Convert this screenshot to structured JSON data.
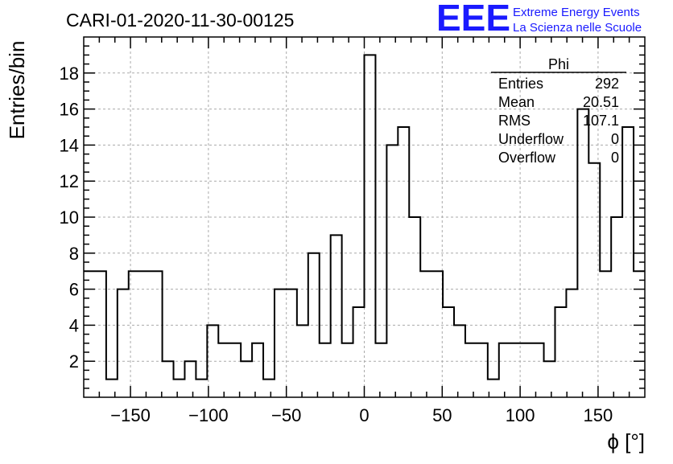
{
  "header": {
    "run_title": "CARI-01-2020-11-30-00125",
    "logo_text": "EEE",
    "logo_line1": "Extreme Energy Events",
    "logo_line2": "La Scienza nelle Scuole",
    "logo_color": "#1a1aff"
  },
  "stats_box": {
    "title": "Phi",
    "rows": [
      {
        "label": "Entries",
        "value": "292"
      },
      {
        "label": "Mean",
        "value": "20.51"
      },
      {
        "label": "RMS",
        "value": "107.1"
      },
      {
        "label": "Underflow",
        "value": "0"
      },
      {
        "label": "Overflow",
        "value": "0"
      }
    ]
  },
  "chart_data": {
    "type": "histogram",
    "title": "",
    "xlabel": "ϕ [°]",
    "ylabel": "Entries/bin",
    "xlim": [
      -180,
      180
    ],
    "ylim": [
      0,
      20
    ],
    "bin_width": 7.2,
    "bin_edges_start": -180,
    "values": [
      7,
      7,
      1,
      6,
      7,
      7,
      7,
      2,
      1,
      2,
      1,
      4,
      3,
      3,
      2,
      3,
      1,
      6,
      6,
      4,
      8,
      3,
      9,
      3,
      5,
      19,
      3,
      14,
      15,
      10,
      7,
      7,
      5,
      4,
      3,
      3,
      1,
      3,
      3,
      3,
      3,
      2,
      5,
      6,
      16,
      13,
      7,
      10,
      15,
      7
    ],
    "x_ticks": [
      -150,
      -100,
      -50,
      0,
      50,
      100,
      150
    ],
    "x_tick_labels": [
      "−150",
      "−100",
      "−50",
      "0",
      "50",
      "100",
      "150"
    ],
    "y_ticks": [
      2,
      4,
      6,
      8,
      10,
      12,
      14,
      16,
      18
    ],
    "y_tick_labels": [
      "2",
      "4",
      "6",
      "8",
      "10",
      "12",
      "14",
      "16",
      "18"
    ],
    "grid": true,
    "line_color": "#000000"
  }
}
